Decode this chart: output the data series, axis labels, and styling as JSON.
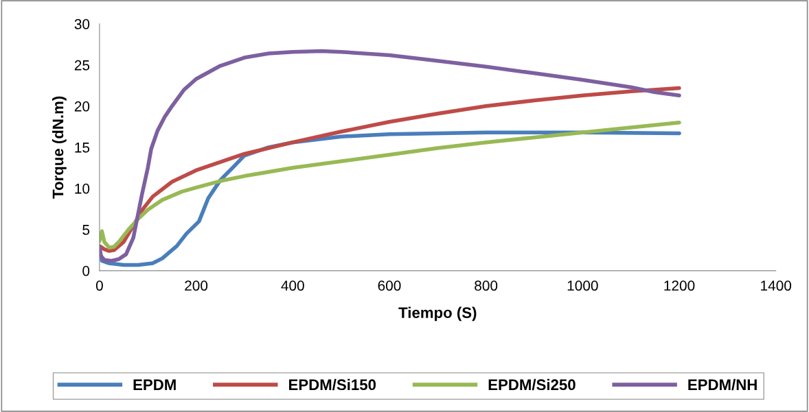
{
  "chart_data": {
    "type": "line",
    "xlabel": "Tiempo (S)",
    "ylabel": "Torque (dN.m)",
    "xlim": [
      0,
      1400
    ],
    "xticks": [
      0,
      200,
      400,
      600,
      800,
      1000,
      1200,
      1400
    ],
    "ylim": [
      0,
      30
    ],
    "yticks": [
      0,
      5,
      10,
      15,
      20,
      25,
      30
    ],
    "grid": false,
    "legend": "bottom",
    "marker": "none",
    "line_style": "solid",
    "series": [
      {
        "name": "EPDM",
        "color": "#4a7ebb",
        "x": [
          0,
          5,
          20,
          50,
          80,
          110,
          130,
          160,
          180,
          206,
          225,
          250,
          277,
          300,
          350,
          400,
          500,
          600,
          800,
          1000,
          1200
        ],
        "values": [
          2.5,
          1.2,
          0.9,
          0.7,
          0.7,
          0.9,
          1.5,
          3,
          4.5,
          6,
          8.8,
          11,
          12.6,
          14,
          15,
          15.6,
          16.3,
          16.6,
          16.8,
          16.8,
          16.7
        ]
      },
      {
        "name": "EPDM/Si150",
        "color": "#be4b48",
        "x": [
          0,
          10,
          20,
          30,
          50,
          70,
          90,
          110,
          150,
          200,
          250,
          300,
          400,
          500,
          600,
          700,
          800,
          900,
          1000,
          1100,
          1200
        ],
        "values": [
          3,
          2.6,
          2.4,
          2.5,
          3.5,
          5.5,
          7.5,
          9,
          10.8,
          12.2,
          13.2,
          14.2,
          15.6,
          16.9,
          18.1,
          19.1,
          20,
          20.7,
          21.3,
          21.8,
          22.2
        ]
      },
      {
        "name": "EPDM/Si250",
        "color": "#98b954",
        "x": [
          0,
          5,
          10,
          20,
          30,
          40,
          60,
          80,
          100,
          130,
          170,
          200,
          250,
          300,
          400,
          500,
          600,
          700,
          800,
          900,
          1000,
          1100,
          1200
        ],
        "values": [
          3.6,
          4.8,
          3.5,
          2.8,
          2.9,
          3.5,
          5,
          6.3,
          7.4,
          8.6,
          9.6,
          10.1,
          10.9,
          11.5,
          12.5,
          13.3,
          14.1,
          14.9,
          15.6,
          16.2,
          16.8,
          17.4,
          18
        ]
      },
      {
        "name": "EPDM/NH",
        "color": "#7d60a0",
        "x": [
          0,
          3,
          10,
          25,
          40,
          55,
          70,
          88,
          100,
          107,
          120,
          135,
          150,
          175,
          200,
          250,
          300,
          350,
          400,
          460,
          500,
          600,
          700,
          800,
          900,
          1000,
          1100,
          1150,
          1200
        ],
        "values": [
          2.9,
          1.8,
          1.3,
          1.2,
          1.4,
          2,
          4,
          9.3,
          12.5,
          14.8,
          17,
          18.7,
          20,
          22,
          23.3,
          24.9,
          25.9,
          26.4,
          26.6,
          26.7,
          26.6,
          26.2,
          25.5,
          24.8,
          24,
          23.2,
          22.3,
          21.7,
          21.3
        ]
      }
    ]
  }
}
